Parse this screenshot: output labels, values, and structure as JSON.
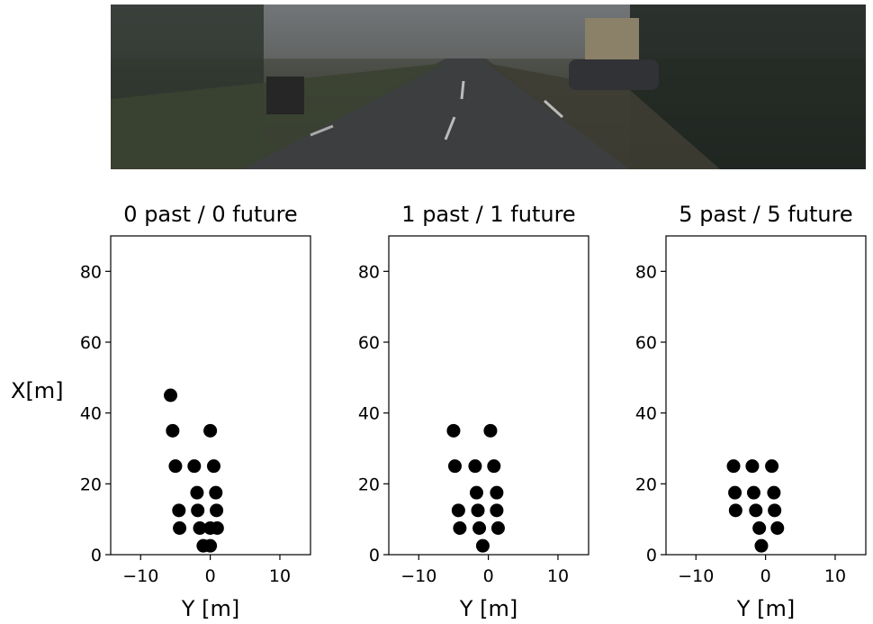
{
  "chart_data": [
    {
      "type": "scatter",
      "title": "0 past / 0 future",
      "xlabel": "Y [m]",
      "ylabel": "X[m]",
      "color": "#000000",
      "x": [
        -5.7,
        -5.4,
        0,
        -5.0,
        -2.3,
        0.5,
        -1.9,
        0.8,
        -4.5,
        -1.8,
        0.9,
        -4.4,
        -1.5,
        0,
        1.0,
        -1.0,
        0
      ],
      "values": [
        45,
        35,
        35,
        25,
        25,
        25,
        17.5,
        17.5,
        12.5,
        12.5,
        12.5,
        7.5,
        7.5,
        7.5,
        7.5,
        2.5,
        2.5
      ],
      "xlim": [
        -14.3,
        14.4
      ],
      "ylim": [
        0,
        90
      ],
      "xticks": [
        {
          "value": -10,
          "label": "−10"
        },
        0,
        10
      ],
      "yticks": [
        0,
        20,
        40,
        60,
        80
      ]
    },
    {
      "type": "scatter",
      "title": "1 past / 1 future",
      "xlabel": "Y [m]",
      "color": "#000000",
      "x": [
        -5.0,
        0.3,
        -4.8,
        -1.9,
        0.8,
        -1.7,
        1.2,
        -4.3,
        -1.5,
        1.2,
        -4.1,
        -1.3,
        1.4,
        -0.8
      ],
      "values": [
        35,
        35,
        25,
        25,
        25,
        17.5,
        17.5,
        12.5,
        12.5,
        12.5,
        7.5,
        7.5,
        7.5,
        2.5
      ],
      "xlim": [
        -14.3,
        14.4
      ],
      "ylim": [
        0,
        90
      ],
      "xticks": [
        {
          "value": -10,
          "label": "−10"
        },
        0,
        10
      ],
      "yticks": [
        0,
        20,
        40,
        60,
        80
      ]
    },
    {
      "type": "scatter",
      "title": "5 past / 5 future",
      "xlabel": "Y [m]",
      "color": "#000000",
      "x": [
        -4.6,
        -1.9,
        0.9,
        -4.4,
        -1.7,
        1.2,
        -4.3,
        -1.4,
        1.3,
        -0.9,
        1.7,
        -0.6
      ],
      "values": [
        25,
        25,
        25,
        17.5,
        17.5,
        17.5,
        12.5,
        12.5,
        12.5,
        7.5,
        7.5,
        2.5
      ],
      "xlim": [
        -14.3,
        14.4
      ],
      "ylim": [
        0,
        90
      ],
      "xticks": [
        {
          "value": -10,
          "label": "−10"
        },
        0,
        10
      ],
      "yticks": [
        0,
        20,
        40,
        60,
        80
      ]
    }
  ]
}
